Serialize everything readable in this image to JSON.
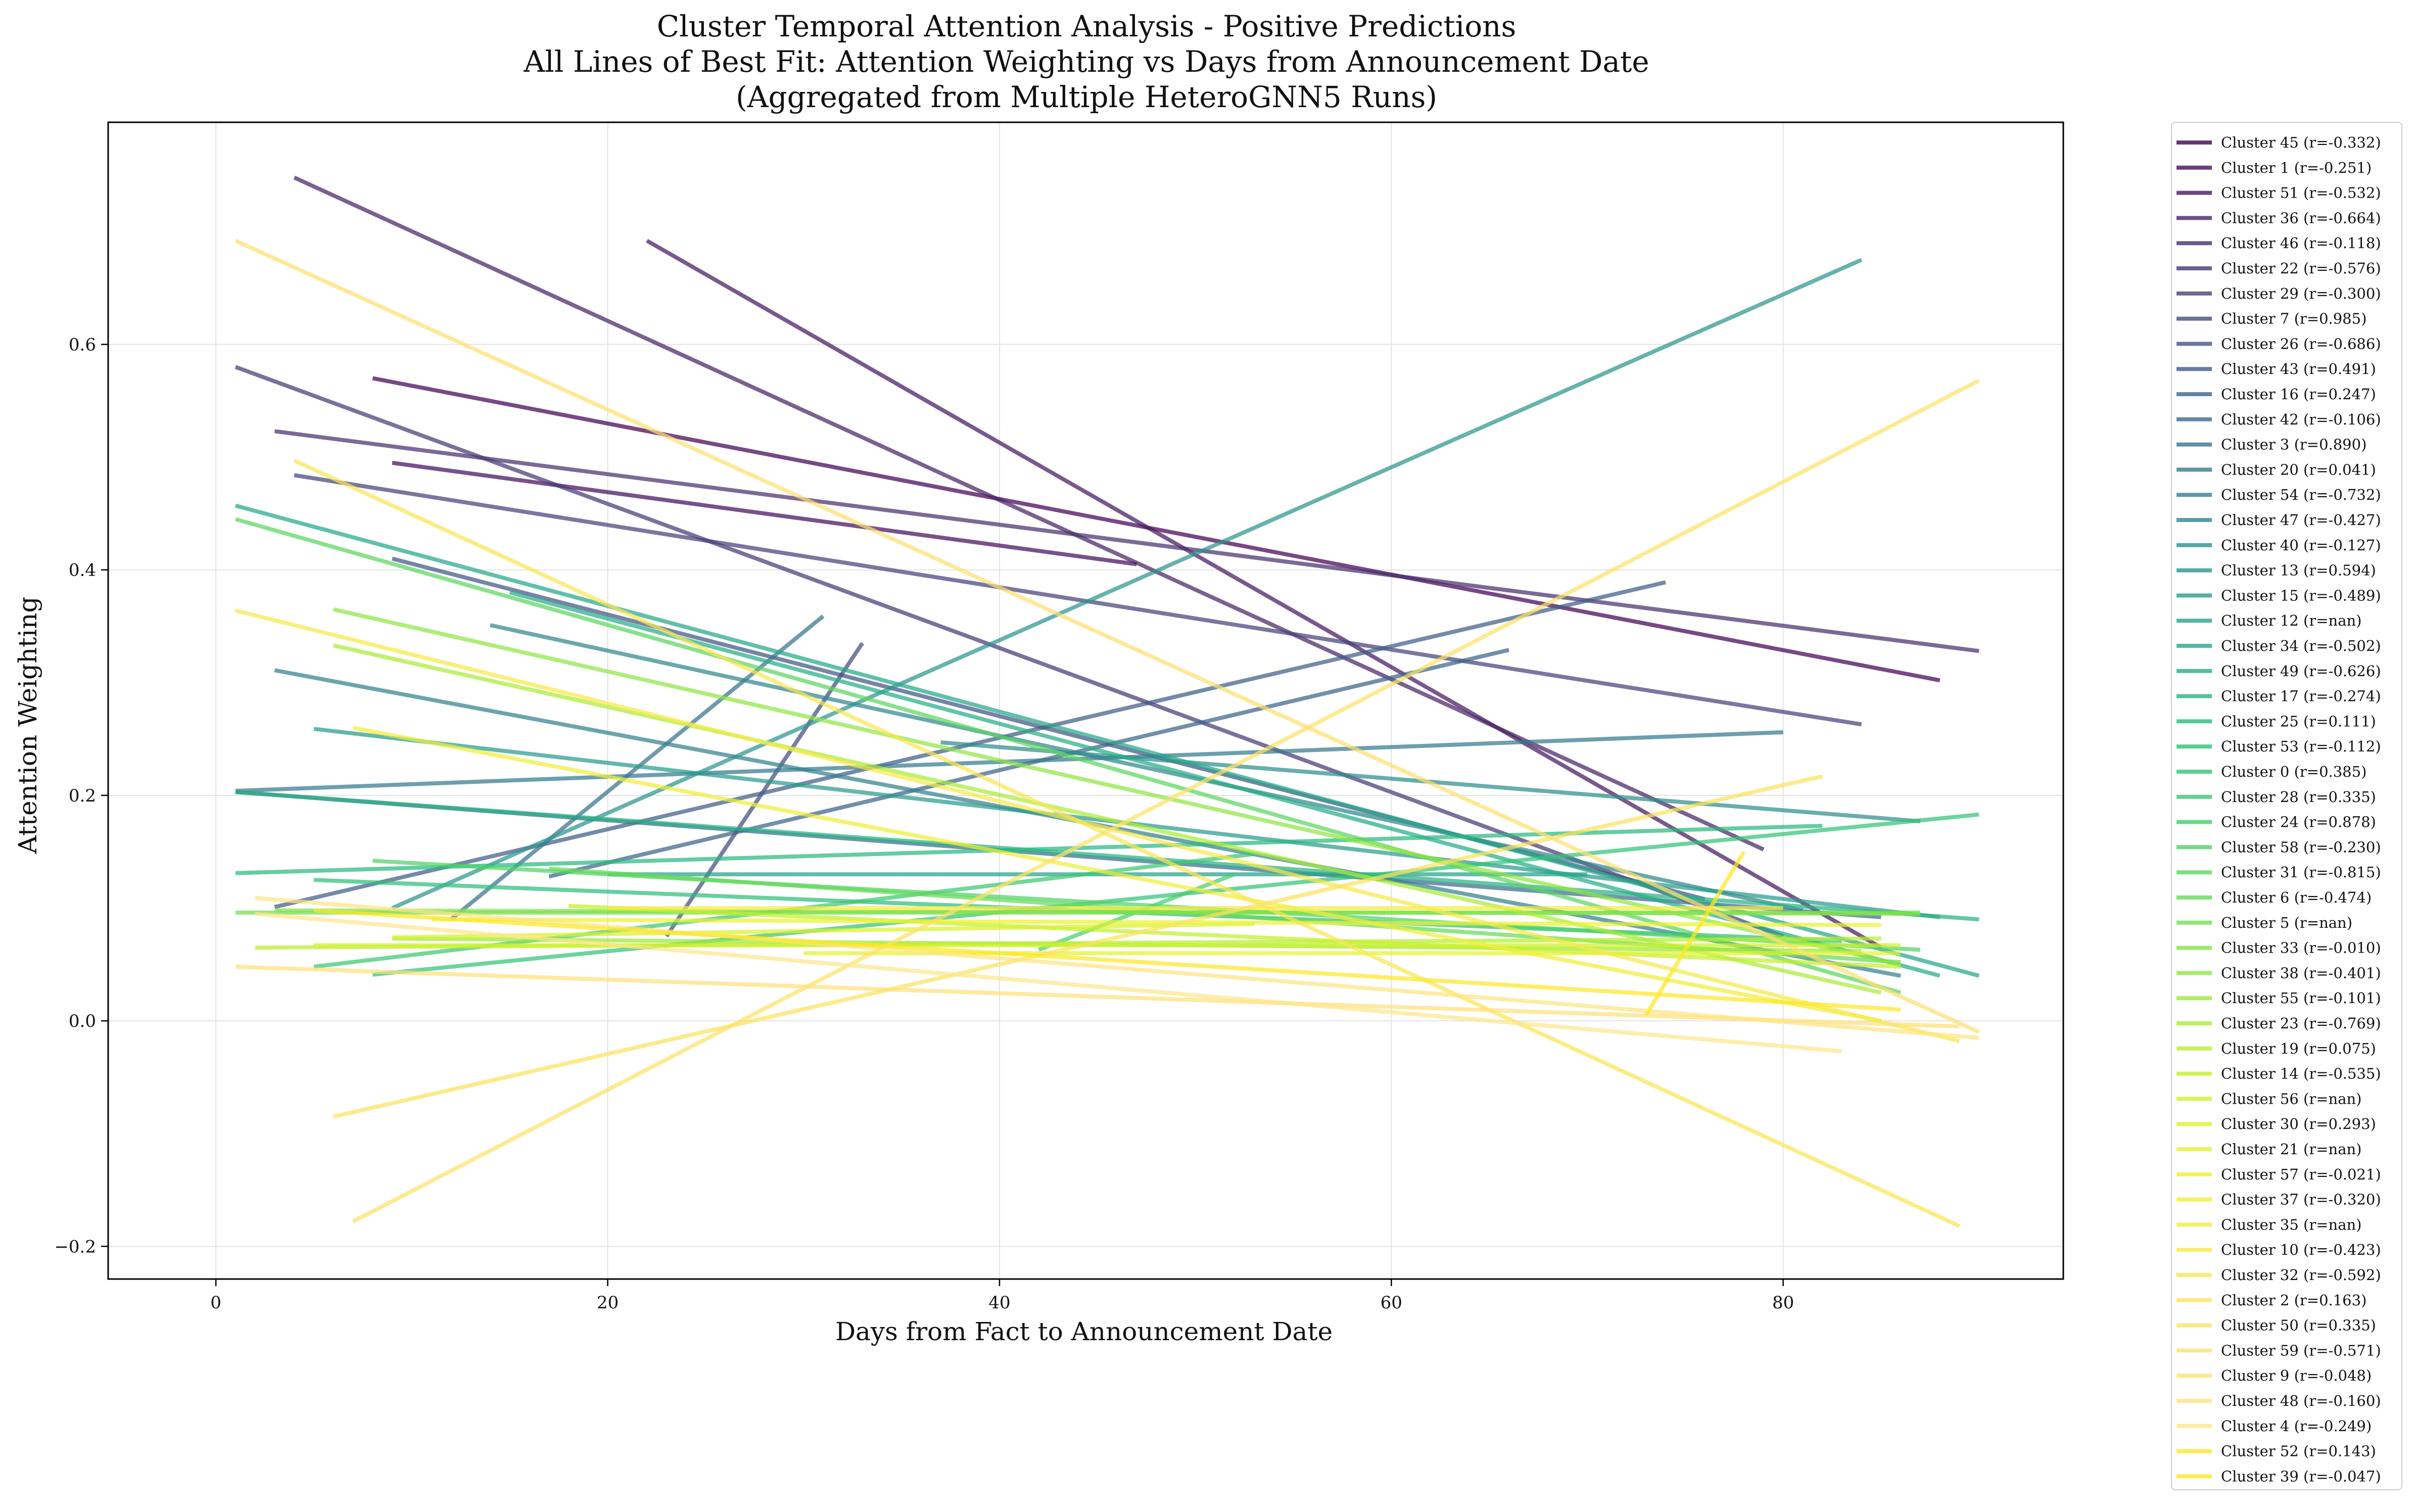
{
  "chart_data": {
    "type": "line",
    "title_lines": [
      "Cluster Temporal Attention Analysis - Positive Predictions",
      "All Lines of Best Fit: Attention Weighting vs Days from Announcement Date",
      "(Aggregated from Multiple HeteroGNN5 Runs)"
    ],
    "xlabel": "Days from Fact to Announcement Date",
    "ylabel": "Attention Weighting",
    "xlim": [
      -5.5,
      94.3
    ],
    "ylim": [
      -0.229,
      0.797
    ],
    "x_ticks": [
      0,
      20,
      40,
      60,
      80
    ],
    "y_ticks": [
      -0.2,
      0.0,
      0.2,
      0.4,
      0.6
    ],
    "x_tick_labels": [
      "0",
      "20",
      "40",
      "60",
      "80"
    ],
    "y_tick_labels": [
      "−0.2",
      "0.0",
      "0.2",
      "0.4",
      "0.6"
    ],
    "grid": true,
    "legend_position": "outside-right",
    "series": [
      {
        "name": "Cluster 45 (r=-0.332)",
        "color": "#440154",
        "x": [
          8,
          88
        ],
        "y": [
          0.57,
          0.302
        ]
      },
      {
        "name": "Cluster 1 (r=-0.251)",
        "color": "#440e5e",
        "x": [
          9,
          47
        ],
        "y": [
          0.495,
          0.405
        ]
      },
      {
        "name": "Cluster 51 (r=-0.532)",
        "color": "#45195f",
        "x": [
          22,
          85
        ],
        "y": [
          0.692,
          0.065
        ]
      },
      {
        "name": "Cluster 36 (r=-0.664)",
        "color": "#472465",
        "x": [
          4,
          79
        ],
        "y": [
          0.748,
          0.152
        ]
      },
      {
        "name": "Cluster 46 (r=-0.118)",
        "color": "#48306e",
        "x": [
          3,
          90
        ],
        "y": [
          0.523,
          0.328
        ]
      },
      {
        "name": "Cluster 22 (r=-0.576)",
        "color": "#463a75",
        "x": [
          1,
          80
        ],
        "y": [
          0.58,
          0.075
        ]
      },
      {
        "name": "Cluster 29 (r=-0.300)",
        "color": "#45427a",
        "x": [
          4,
          84
        ],
        "y": [
          0.484,
          0.263
        ]
      },
      {
        "name": "Cluster 7 (r=0.985)",
        "color": "#434c80",
        "x": [
          23,
          33
        ],
        "y": [
          0.075,
          0.335
        ]
      },
      {
        "name": "Cluster 26 (r=-0.686)",
        "color": "#415584",
        "x": [
          9,
          76
        ],
        "y": [
          0.41,
          0.108
        ]
      },
      {
        "name": "Cluster 43 (r=0.491)",
        "color": "#3f5d87",
        "x": [
          3,
          74
        ],
        "y": [
          0.101,
          0.389
        ]
      },
      {
        "name": "Cluster 16 (r=0.247)",
        "color": "#3c6489",
        "x": [
          17,
          66
        ],
        "y": [
          0.128,
          0.329
        ]
      },
      {
        "name": "Cluster 42 (r=-0.106)",
        "color": "#3b6c8b",
        "x": [
          1,
          85
        ],
        "y": [
          0.203,
          0.092
        ]
      },
      {
        "name": "Cluster 3 (r=0.890)",
        "color": "#38738c",
        "x": [
          12,
          31
        ],
        "y": [
          0.09,
          0.359
        ]
      },
      {
        "name": "Cluster 20 (r=0.041)",
        "color": "#357a8d",
        "x": [
          1,
          80
        ],
        "y": [
          0.204,
          0.256
        ]
      },
      {
        "name": "Cluster 54 (r=-0.732)",
        "color": "#33818e",
        "x": [
          3,
          86
        ],
        "y": [
          0.311,
          0.04
        ]
      },
      {
        "name": "Cluster 47 (r=-0.427)",
        "color": "#31878e",
        "x": [
          14,
          81
        ],
        "y": [
          0.351,
          0.098
        ]
      },
      {
        "name": "Cluster 40 (r=-0.127)",
        "color": "#2f8e8e",
        "x": [
          37,
          87
        ],
        "y": [
          0.247,
          0.177
        ]
      },
      {
        "name": "Cluster 13 (r=0.594)",
        "color": "#2c948e",
        "x": [
          9,
          84
        ],
        "y": [
          0.1,
          0.675
        ]
      },
      {
        "name": "Cluster 15 (r=-0.489)",
        "color": "#2a9b8d",
        "x": [
          5,
          88
        ],
        "y": [
          0.259,
          0.092
        ]
      },
      {
        "name": "Cluster 12 (r=nan)",
        "color": "#28a18b",
        "x": [
          20,
          70
        ],
        "y": [
          0.13,
          0.13
        ]
      },
      {
        "name": "Cluster 34 (r=-0.502)",
        "color": "#26a789",
        "x": [
          1,
          90
        ],
        "y": [
          0.457,
          0.04
        ]
      },
      {
        "name": "Cluster 49 (r=-0.626)",
        "color": "#25ad87",
        "x": [
          15,
          88
        ],
        "y": [
          0.38,
          0.04
        ]
      },
      {
        "name": "Cluster 17 (r=-0.274)",
        "color": "#27b384",
        "x": [
          1,
          90
        ],
        "y": [
          0.203,
          0.09
        ]
      },
      {
        "name": "Cluster 25 (r=0.111)",
        "color": "#2ab980",
        "x": [
          1,
          82
        ],
        "y": [
          0.131,
          0.173
        ]
      },
      {
        "name": "Cluster 53 (r=-0.112)",
        "color": "#2ebe7c",
        "x": [
          5,
          83
        ],
        "y": [
          0.125,
          0.071
        ]
      },
      {
        "name": "Cluster 0 (r=0.385)",
        "color": "#33c377",
        "x": [
          8,
          90
        ],
        "y": [
          0.041,
          0.183
        ]
      },
      {
        "name": "Cluster 28 (r=0.335)",
        "color": "#3bc872",
        "x": [
          5,
          53
        ],
        "y": [
          0.048,
          0.148
        ]
      },
      {
        "name": "Cluster 24 (r=0.878)",
        "color": "#45cd6c",
        "x": [
          42,
          52
        ],
        "y": [
          0.063,
          0.13
        ]
      },
      {
        "name": "Cluster 58 (r=-0.230)",
        "color": "#50d266",
        "x": [
          8,
          87
        ],
        "y": [
          0.142,
          0.063
        ]
      },
      {
        "name": "Cluster 31 (r=-0.815)",
        "color": "#5bd660",
        "x": [
          1,
          86
        ],
        "y": [
          0.445,
          0.025
        ]
      },
      {
        "name": "Cluster 6 (r=-0.474)",
        "color": "#67da59",
        "x": [
          17,
          86
        ],
        "y": [
          0.135,
          0.052
        ]
      },
      {
        "name": "Cluster 5 (r=nan)",
        "color": "#74de52",
        "x": [
          1,
          87
        ],
        "y": [
          0.096,
          0.096
        ]
      },
      {
        "name": "Cluster 33 (r=-0.010)",
        "color": "#82e24b",
        "x": [
          3,
          87
        ],
        "y": [
          0.098,
          0.095
        ]
      },
      {
        "name": "Cluster 38 (r=-0.401)",
        "color": "#8fe644",
        "x": [
          6,
          86
        ],
        "y": [
          0.365,
          0.05
        ]
      },
      {
        "name": "Cluster 55 (r=-0.101)",
        "color": "#9de93d",
        "x": [
          9,
          84
        ],
        "y": [
          0.073,
          0.062
        ]
      },
      {
        "name": "Cluster 23 (r=-0.769)",
        "color": "#aaec37",
        "x": [
          6,
          85
        ],
        "y": [
          0.333,
          0.025
        ]
      },
      {
        "name": "Cluster 19 (r=0.075)",
        "color": "#b7ee32",
        "x": [
          2,
          85
        ],
        "y": [
          0.065,
          0.073
        ]
      },
      {
        "name": "Cluster 14 (r=-0.535)",
        "color": "#c3f02e",
        "x": [
          18,
          86
        ],
        "y": [
          0.102,
          0.048
        ]
      },
      {
        "name": "Cluster 56 (r=nan)",
        "color": "#cff12c",
        "x": [
          5,
          86
        ],
        "y": [
          0.067,
          0.067
        ]
      },
      {
        "name": "Cluster 30 (r=0.293)",
        "color": "#daf22d",
        "x": [
          9,
          53
        ],
        "y": [
          0.074,
          0.086
        ]
      },
      {
        "name": "Cluster 21 (r=nan)",
        "color": "#e3f230",
        "x": [
          30,
          86
        ],
        "y": [
          0.06,
          0.06
        ]
      },
      {
        "name": "Cluster 57 (r=-0.021)",
        "color": "#ebf234",
        "x": [
          11,
          85
        ],
        "y": [
          0.09,
          0.085
        ]
      },
      {
        "name": "Cluster 37 (r=-0.320)",
        "color": "#f0ef3a",
        "x": [
          7,
          85
        ],
        "y": [
          0.26,
          0.0
        ]
      },
      {
        "name": "Cluster 35 (r=nan)",
        "color": "#f4ec42",
        "x": [
          20,
          80
        ],
        "y": [
          0.1,
          0.1
        ]
      },
      {
        "name": "Cluster 10 (r=-0.423)",
        "color": "#f7e94b",
        "x": [
          1,
          89
        ],
        "y": [
          0.364,
          -0.018
        ]
      },
      {
        "name": "Cluster 32 (r=-0.592)",
        "color": "#f9e655",
        "x": [
          4,
          89
        ],
        "y": [
          0.497,
          -0.182
        ]
      },
      {
        "name": "Cluster 2 (r=0.163)",
        "color": "#fbe35f",
        "x": [
          6,
          82
        ],
        "y": [
          -0.085,
          0.217
        ]
      },
      {
        "name": "Cluster 50 (r=0.335)",
        "color": "#fce268",
        "x": [
          7,
          90
        ],
        "y": [
          -0.178,
          0.568
        ]
      },
      {
        "name": "Cluster 59 (r=-0.571)",
        "color": "#fde172",
        "x": [
          1,
          90
        ],
        "y": [
          0.692,
          -0.01
        ]
      },
      {
        "name": "Cluster 9 (r=-0.048)",
        "color": "#fde17a",
        "x": [
          1,
          89
        ],
        "y": [
          0.048,
          -0.005
        ]
      },
      {
        "name": "Cluster 48 (r=-0.160)",
        "color": "#fde483",
        "x": [
          2,
          90
        ],
        "y": [
          0.109,
          -0.015
        ]
      },
      {
        "name": "Cluster 4 (r=-0.249)",
        "color": "#fde68c",
        "x": [
          2,
          83
        ],
        "y": [
          0.095,
          -0.027
        ]
      },
      {
        "name": "Cluster 52 (r=0.143)",
        "color": "#fde725",
        "x": [
          73,
          78
        ],
        "y": [
          0.005,
          0.15
        ]
      },
      {
        "name": "Cluster 39 (r=-0.047)",
        "color": "#fde725",
        "x": [
          5,
          86
        ],
        "y": [
          0.098,
          0.01
        ]
      }
    ]
  }
}
